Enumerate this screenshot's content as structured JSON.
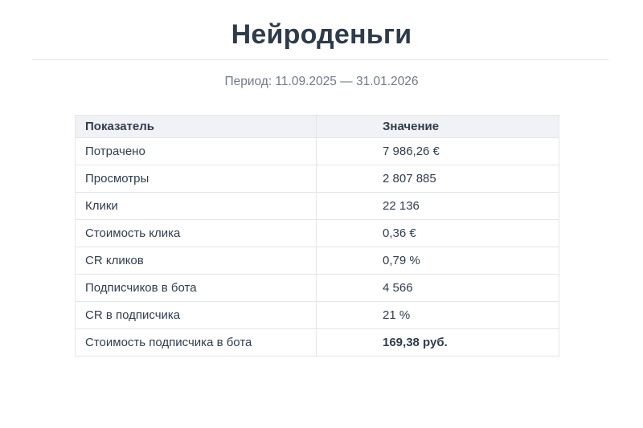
{
  "page": {
    "title": "Нейроденьги",
    "period": "Период: 11.09.2025 — 31.01.2026"
  },
  "table": {
    "headers": {
      "label": "Показатель",
      "value": "Значение"
    },
    "rows": [
      {
        "label": "Потрачено",
        "value": "7 986,26 €"
      },
      {
        "label": "Просмотры",
        "value": "2 807 885"
      },
      {
        "label": "Клики",
        "value": "22 136"
      },
      {
        "label": "Стоимость клика",
        "value": "0,36 €"
      },
      {
        "label": "CR кликов",
        "value": "0,79 %"
      },
      {
        "label": "Подписчиков в бота",
        "value": "4 566"
      },
      {
        "label": "CR в подписчика",
        "value": "21 %"
      },
      {
        "label": "Стоимость подписчика в бота",
        "value": "169,38 руб."
      }
    ]
  },
  "colors": {
    "title_text": "#2e3b4a",
    "body_text": "#2f3d4e",
    "muted_text": "#6e7987",
    "header_bg": "#f1f2f5",
    "border": "#e2e5e9",
    "background": "#ffffff"
  }
}
